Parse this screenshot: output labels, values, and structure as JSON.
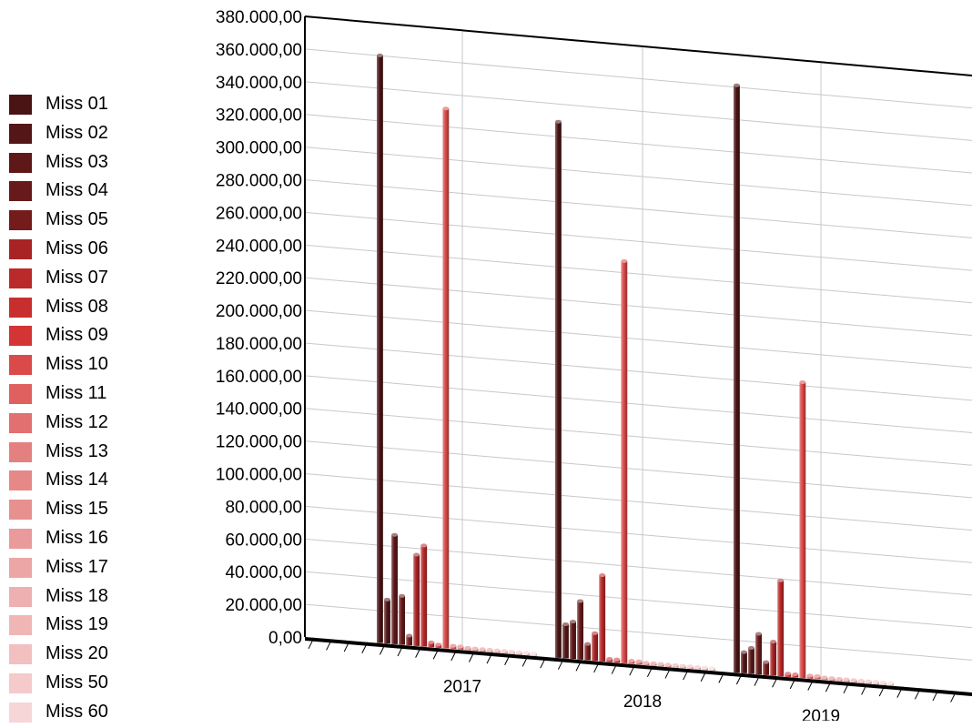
{
  "chart_data": {
    "type": "bar",
    "projection": "3d-perspective",
    "categories": [
      "2017",
      "2018",
      "2019"
    ],
    "ylim": [
      0,
      380000
    ],
    "yticks": [
      "0,00",
      "20.000,00",
      "40.000,00",
      "60.000,00",
      "80.000,00",
      "100.000,00",
      "120.000,00",
      "140.000,00",
      "160.000,00",
      "180.000,00",
      "200.000,00",
      "220.000,00",
      "240.000,00",
      "260.000,00",
      "280.000,00",
      "300.000,00",
      "320.000,00",
      "340.000,00",
      "360.000,00",
      "380.000,00"
    ],
    "grid": true,
    "legend_position": "left",
    "series": [
      {
        "name": "Miss 01",
        "color": "#4a1414",
        "values": [
          360000,
          329000,
          361000
        ]
      },
      {
        "name": "Miss 02",
        "color": "#541616",
        "values": [
          27000,
          21000,
          13000
        ]
      },
      {
        "name": "Miss 03",
        "color": "#5e1818",
        "values": [
          67000,
          23000,
          16000
        ]
      },
      {
        "name": "Miss 04",
        "color": "#681a1a",
        "values": [
          30000,
          36000,
          25000
        ]
      },
      {
        "name": "Miss 05",
        "color": "#741c1c",
        "values": [
          6000,
          10000,
          8000
        ]
      },
      {
        "name": "Miss 06",
        "color": "#a82424",
        "values": [
          56000,
          17000,
          21000
        ]
      },
      {
        "name": "Miss 07",
        "color": "#bb2a2a",
        "values": [
          62000,
          53000,
          59000
        ]
      },
      {
        "name": "Miss 08",
        "color": "#c82e2e",
        "values": [
          3000,
          2000,
          2000
        ]
      },
      {
        "name": "Miss 09",
        "color": "#d43434",
        "values": [
          2000,
          2000,
          2000
        ]
      },
      {
        "name": "Miss 10",
        "color": "#db4a4a",
        "values": [
          331000,
          247000,
          182000
        ]
      },
      {
        "name": "Miss 11",
        "color": "#e06060",
        "values": [
          2000,
          2000,
          2000
        ]
      },
      {
        "name": "Miss 12",
        "color": "#e27070",
        "values": [
          2000,
          2000,
          2000
        ]
      },
      {
        "name": "Miss 13",
        "color": "#e48080",
        "values": [
          1500,
          1500,
          1500
        ]
      },
      {
        "name": "Miss 14",
        "color": "#e68888",
        "values": [
          1500,
          1500,
          1500
        ]
      },
      {
        "name": "Miss 15",
        "color": "#e89090",
        "values": [
          1500,
          1500,
          1500
        ]
      },
      {
        "name": "Miss 16",
        "color": "#ea9a9a",
        "values": [
          1500,
          1500,
          1500
        ]
      },
      {
        "name": "Miss 17",
        "color": "#eca6a6",
        "values": [
          1500,
          1500,
          1500
        ]
      },
      {
        "name": "Miss 18",
        "color": "#eeb0b0",
        "values": [
          1500,
          1500,
          1500
        ]
      },
      {
        "name": "Miss 19",
        "color": "#f0b6b6",
        "values": [
          1500,
          1500,
          1500
        ]
      },
      {
        "name": "Miss 20",
        "color": "#f2c0c0",
        "values": [
          1500,
          1500,
          1500
        ]
      },
      {
        "name": "Miss 50",
        "color": "#f4caca",
        "values": [
          1500,
          1500,
          1500
        ]
      },
      {
        "name": "Miss 60",
        "color": "#f6d6d6",
        "values": [
          1500,
          1500,
          1500
        ]
      }
    ]
  }
}
